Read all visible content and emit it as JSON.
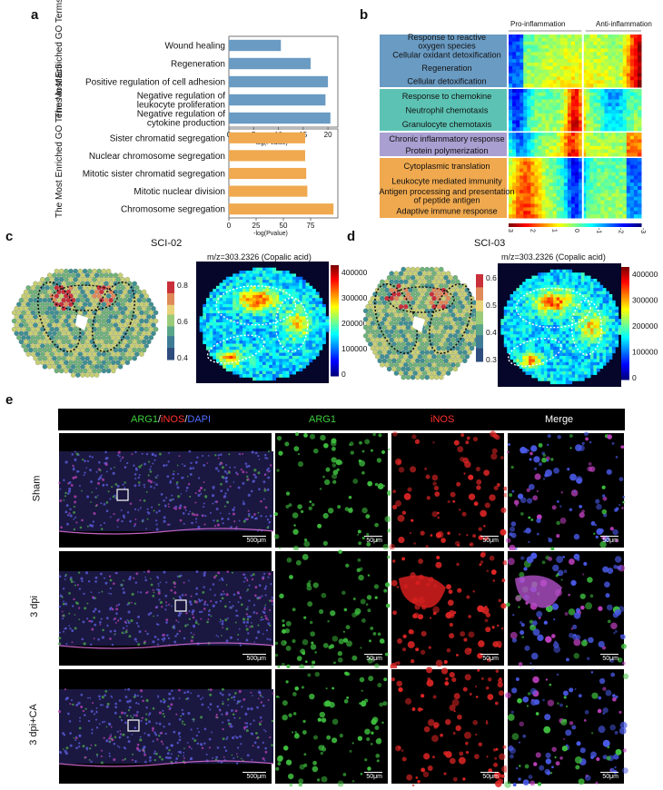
{
  "panel_labels": {
    "a": "a",
    "b": "b",
    "c": "c",
    "d": "d",
    "e": "e"
  },
  "panel_a": {
    "mac4_title": "The Most Enriched GO Terms in Mac4",
    "mac5_title": "The Most Enriched GO Terms in Mac5",
    "xlabel": "-log(Pvalue)"
  },
  "chart_data": [
    {
      "type": "bar",
      "title": "",
      "ylabel": "The Most Enriched GO Terms in Mac4",
      "xlabel": "-log(Pvalue)",
      "categories": [
        "Wound healing",
        "Regeneration",
        "Positive regulation of cell adhesion",
        "Negative regulation of leukocyte proliferation",
        "Negative regulation of cytokine production"
      ],
      "values": [
        10.5,
        16.5,
        20,
        19.5,
        20.5
      ],
      "xlim": [
        0,
        22
      ],
      "xticks": [
        0,
        5,
        10,
        15,
        20
      ],
      "color": "#6a9bc3"
    },
    {
      "type": "bar",
      "title": "",
      "ylabel": "The Most Enriched GO Terms in Mac5",
      "xlabel": "-log(Pvalue)",
      "categories": [
        "Sister chromatid segregation",
        "Nuclear chromosome segregation",
        "Mitotic sister chromatid segregation",
        "Mitotic nuclear division",
        "Chromosome segregation"
      ],
      "values": [
        70,
        70,
        71,
        72,
        96
      ],
      "xlim": [
        0,
        100
      ],
      "xticks": [
        0,
        25,
        50,
        75
      ],
      "color": "#f0a94f"
    }
  ],
  "panel_b": {
    "pro_label": "Pro-inflammation",
    "anti_label": "Anti-inflammation",
    "groups": [
      {
        "color": "#6a9bc3",
        "labels": [
          "Response to reactive oxygen species",
          "Cellular oxidant detoxification",
          "Regeneration",
          "Cellular detoxification"
        ]
      },
      {
        "color": "#5cc3b4",
        "labels": [
          "Response to chemokine",
          "Neutrophil chemotaxis",
          "Granulocyte chemotaxis"
        ]
      },
      {
        "color": "#a99fd0",
        "labels": [
          "Chronic inflammatory response",
          "Protein polymerization"
        ]
      },
      {
        "color": "#f0a94f",
        "labels": [
          "Cytoplasmic translation",
          "Leukocyte mediated immunity",
          "Antigen processing and presentation of peptide antigen",
          "Adaptive immune response"
        ]
      }
    ],
    "colorbar_ticks": [
      "3",
      "2",
      "1",
      "0",
      "-1",
      "-2",
      "-3"
    ]
  },
  "panel_c": {
    "sample": "SCI-02",
    "msi_title": "m/z=303.2326 (Copalic acid)",
    "spot_ticks": [
      "0.8",
      "0.6",
      "0.4"
    ],
    "msi_ticks": [
      "400000",
      "300000",
      "200000",
      "100000",
      "0"
    ]
  },
  "panel_d": {
    "sample": "SCI-03",
    "msi_title": "m/z=303.2326 (Copalic acid)",
    "spot_ticks": [
      "0.6",
      "0.5",
      "0.4",
      "0.3"
    ],
    "msi_ticks": [
      "400000",
      "300000",
      "200000",
      "100000",
      "0"
    ]
  },
  "panel_e": {
    "header": {
      "arg1": "ARG1",
      "slash1": "/",
      "inos": "iNOS",
      "slash2": "/",
      "dapi": "DAPI",
      "col2": "ARG1",
      "col3": "iNOS",
      "col4": "Merge"
    },
    "header_colors": {
      "arg1": "#3ecf3e",
      "inos": "#ff3030",
      "dapi": "#4f6bff"
    },
    "rows": [
      {
        "label": "Sham",
        "scale_large": "500μm",
        "scale_small": "50μm"
      },
      {
        "label": "3 dpi",
        "scale_large": "500μm",
        "scale_small": "50μm"
      },
      {
        "label": "3 dpi+CA",
        "scale_large": "500μm",
        "scale_small": "50μm"
      }
    ]
  }
}
